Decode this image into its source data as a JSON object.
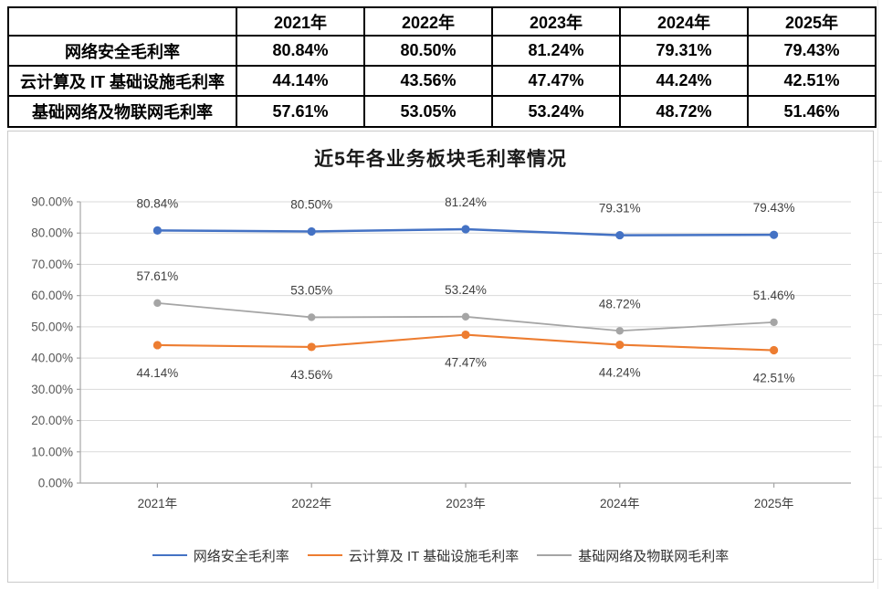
{
  "colors": {
    "highlight_red": "#d23a35",
    "table_border": "#000000",
    "grid": "#d9d9d9",
    "axis": "#a6a6a6"
  },
  "table": {
    "header": [
      "",
      "2021年",
      "2022年",
      "2023年",
      "2024年",
      "2025年"
    ],
    "rows": [
      {
        "label": "网络安全毛利率",
        "values": [
          "80.84%",
          "80.50%",
          "81.24%",
          "79.31%",
          "79.43%"
        ]
      },
      {
        "label": "云计算及 IT 基础设施毛利率",
        "values": [
          "44.14%",
          "43.56%",
          "47.47%",
          "44.24%",
          "42.51%"
        ]
      },
      {
        "label": "基础网络及物联网毛利率",
        "values": [
          "57.61%",
          "53.05%",
          "53.24%",
          "48.72%",
          "51.46%"
        ]
      }
    ]
  },
  "chart_data": {
    "type": "line",
    "title": "近5年各业务板块毛利率情况",
    "categories": [
      "2021年",
      "2022年",
      "2023年",
      "2024年",
      "2025年"
    ],
    "series": [
      {
        "name": "网络安全毛利率",
        "color": "#4472c4",
        "values": [
          80.84,
          80.5,
          81.24,
          79.31,
          79.43
        ],
        "label_position": "above"
      },
      {
        "name": "云计算及 IT 基础设施毛利率",
        "color": "#ed7d31",
        "values": [
          44.14,
          43.56,
          47.47,
          44.24,
          42.51
        ],
        "label_position": "below"
      },
      {
        "name": "基础网络及物联网毛利率",
        "color": "#a5a5a5",
        "values": [
          57.61,
          53.05,
          53.24,
          48.72,
          51.46
        ],
        "label_position": "above"
      }
    ],
    "ylim": [
      0,
      90
    ],
    "ytick_step": 10,
    "value_suffix": "%",
    "decimals": 2,
    "grid": true,
    "legend_position": "bottom"
  }
}
